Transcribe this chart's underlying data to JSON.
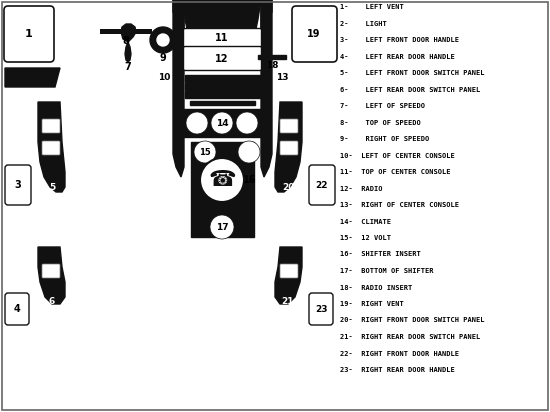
{
  "bg_color": "#ffffff",
  "dark_color": "#111111",
  "legend": [
    "1-    LEFT VENT",
    "2-    LIGHT",
    "3-    LEFT FRONT DOOR HANDLE",
    "4-    LEFT REAR DOOR HANDLE",
    "5-    LEFT FRONT DOOR SWITCH PANEL",
    "6-    LEFT REAR DOOR SWITCH PANEL",
    "7-    LEFT OF SPEEDO",
    "8-    TOP OF SPEEDO",
    "9-    RIGHT OF SPEEDO",
    "10-  LEFT OF CENTER CONSOLE",
    "11-  TOP OF CENTER CONSOLE",
    "12-  RADIO",
    "13-  RIGHT OF CENTER CONSOLE",
    "14-  CLIMATE",
    "15-  12 VOLT",
    "16-  SHIFTER INSERT",
    "17-  BOTTOM OF SHIFTER",
    "18-  RADIO INSERT",
    "19-  RIGHT VENT",
    "20-  RIGHT FRONT DOOR SWITCH PANEL",
    "21-  RIGHT REAR DOOR SWITCH PANEL",
    "22-  RIGHT FRONT DOOR HANDLE",
    "23-  RIGHT REAR DOOR HANDLE"
  ]
}
